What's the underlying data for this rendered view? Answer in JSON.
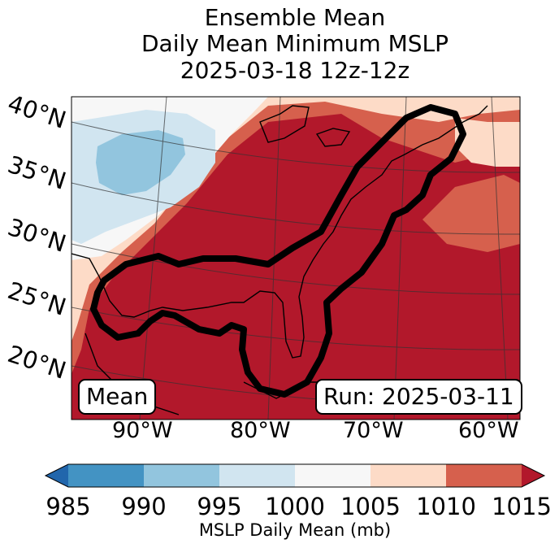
{
  "title": {
    "line1": "Ensemble Mean",
    "line2": "Daily Mean Minimum MSLP",
    "line3": "2025-03-18 12z-12z"
  },
  "map": {
    "lat_labels": [
      "40°N",
      "35°N",
      "30°N",
      "25°N",
      "20°N"
    ],
    "lon_labels": [
      "90°W",
      "80°W",
      "70°W",
      "60°W"
    ],
    "mean_label": "Mean",
    "run_label": "Run: 2025-03-11",
    "contour_color": "#000000"
  },
  "colorbar": {
    "ticks": [
      "985",
      "990",
      "995",
      "1000",
      "1005",
      "1010",
      "1015"
    ],
    "label": "MSLP Daily Mean (mb)",
    "colors": [
      "#2166ac",
      "#4393c3",
      "#92c5de",
      "#d1e5f0",
      "#f7f7f7",
      "#fddbc7",
      "#d6604d",
      "#b2182b"
    ]
  }
}
